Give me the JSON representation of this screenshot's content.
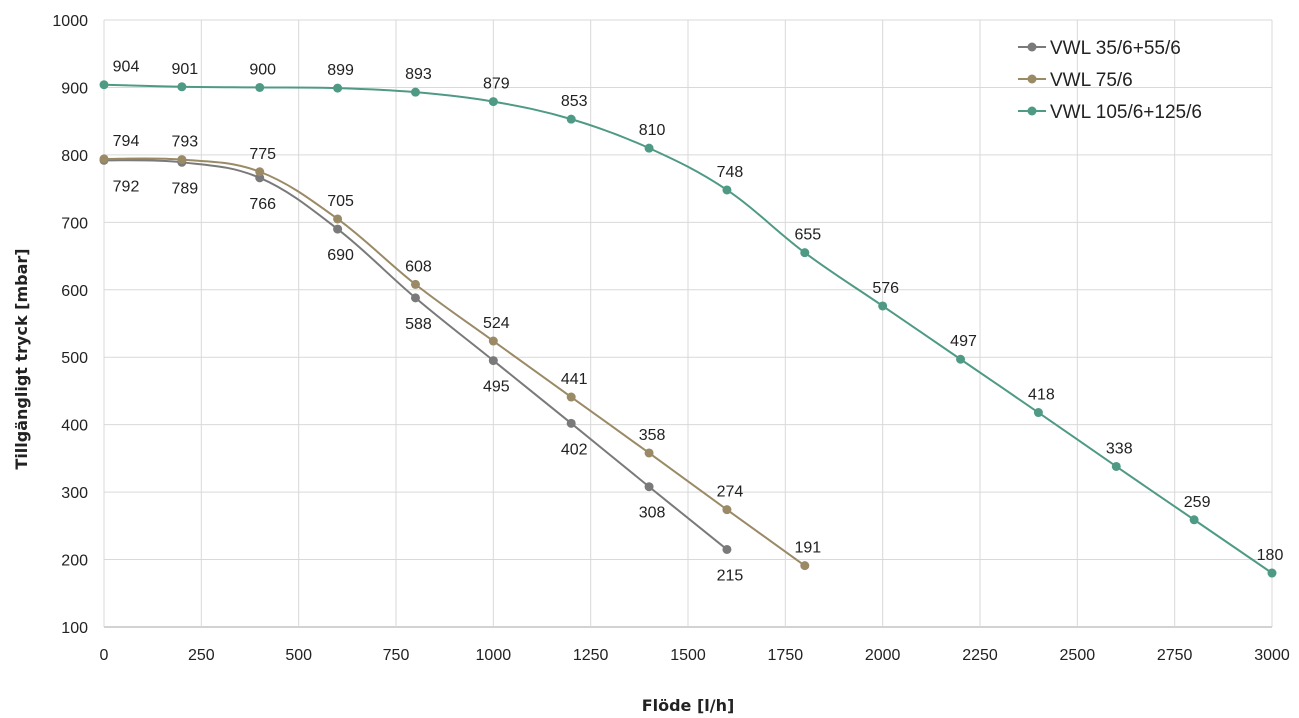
{
  "chart_data": {
    "type": "line",
    "xlabel": "Flöde [l/h]",
    "ylabel": "Tillgängligt tryck [mbar]",
    "xlim": [
      0,
      3000
    ],
    "ylim": [
      100,
      1000
    ],
    "x_ticks": [
      0,
      250,
      500,
      750,
      1000,
      1250,
      1500,
      1750,
      2000,
      2250,
      2500,
      2750,
      3000
    ],
    "y_ticks": [
      100,
      200,
      300,
      400,
      500,
      600,
      700,
      800,
      900,
      1000
    ],
    "grid": true,
    "legend_position": "top-right",
    "series": [
      {
        "name": "VWL 35/6+55/6",
        "color": "#7a7a7a",
        "label_side": "below",
        "x": [
          0,
          200,
          400,
          600,
          800,
          1000,
          1200,
          1400,
          1600
        ],
        "y": [
          792,
          789,
          766,
          690,
          588,
          495,
          402,
          308,
          215
        ]
      },
      {
        "name": "VWL 75/6",
        "color": "#9a8a66",
        "label_side": "above",
        "x": [
          0,
          200,
          400,
          600,
          800,
          1000,
          1200,
          1400,
          1600,
          1800
        ],
        "y": [
          794,
          793,
          775,
          705,
          608,
          524,
          441,
          358,
          274,
          191
        ]
      },
      {
        "name": "VWL 105/6+125/6",
        "color": "#4f9a85",
        "label_side": "above",
        "x": [
          0,
          200,
          400,
          600,
          800,
          1000,
          1200,
          1400,
          1600,
          1800,
          2000,
          2200,
          2400,
          2600,
          2800,
          3000
        ],
        "y": [
          904,
          901,
          900,
          899,
          893,
          879,
          853,
          810,
          748,
          655,
          576,
          497,
          418,
          338,
          259,
          180
        ]
      }
    ]
  }
}
